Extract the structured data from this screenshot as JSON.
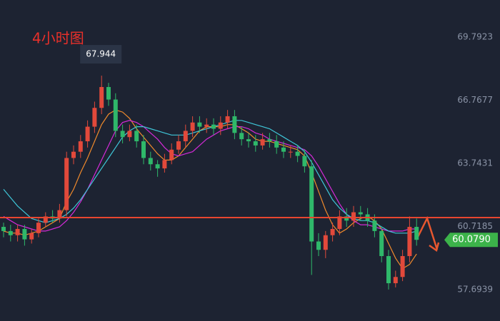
{
  "chart_data": {
    "type": "candlestick",
    "title": "4小时图",
    "up_color": "#e2493b",
    "down_color": "#2fb86a",
    "open": [
      60.7,
      60.5,
      60.3,
      60.6,
      60.1,
      60.4,
      60.9,
      61.2,
      61.1,
      61.5,
      64.0,
      64.3,
      64.8,
      65.5,
      66.4,
      67.4,
      66.8,
      65.3,
      65.0,
      65.3,
      64.8,
      64.0,
      63.7,
      63.5,
      63.9,
      64.4,
      64.8,
      65.3,
      65.7,
      65.5,
      65.6,
      65.4,
      65.7,
      66.0,
      65.2,
      64.9,
      64.8,
      64.6,
      64.9,
      64.8,
      64.5,
      64.3,
      64.3,
      64.1,
      63.6,
      60.0,
      59.6,
      60.3,
      60.6,
      61.2,
      61.0,
      61.4,
      61.3,
      61.0,
      60.5,
      59.3,
      58.0,
      58.3,
      59.3,
      60.7
    ],
    "high": [
      60.9,
      60.8,
      60.8,
      60.8,
      60.6,
      61.1,
      61.4,
      61.5,
      61.8,
      64.3,
      64.6,
      65.1,
      65.8,
      66.7,
      67.944,
      67.6,
      67.1,
      65.6,
      65.6,
      65.6,
      65.1,
      64.3,
      63.9,
      64.2,
      64.7,
      65.1,
      65.6,
      66.0,
      66.0,
      65.9,
      65.9,
      66.0,
      66.3,
      66.3,
      65.5,
      65.2,
      65.1,
      65.2,
      65.2,
      65.1,
      64.8,
      64.6,
      64.6,
      64.4,
      63.9,
      60.4,
      60.5,
      60.9,
      61.5,
      61.6,
      61.7,
      61.7,
      61.6,
      61.3,
      60.7,
      59.6,
      58.6,
      59.6,
      61.2,
      61.1
    ],
    "low": [
      60.2,
      60.0,
      60.0,
      59.8,
      59.9,
      60.2,
      60.7,
      60.9,
      60.9,
      61.2,
      63.7,
      64.0,
      64.5,
      65.2,
      66.1,
      66.5,
      65.0,
      64.7,
      64.8,
      64.5,
      63.7,
      63.4,
      63.1,
      63.3,
      63.7,
      64.2,
      64.5,
      65.0,
      65.2,
      65.2,
      65.1,
      65.1,
      65.4,
      64.9,
      64.6,
      64.5,
      64.3,
      64.4,
      64.5,
      64.2,
      64.0,
      64.0,
      63.8,
      63.3,
      58.4,
      59.3,
      59.2,
      60.0,
      60.3,
      60.7,
      60.7,
      61.0,
      60.7,
      60.2,
      59.0,
      57.7,
      57.8,
      58.1,
      59.0,
      59.8
    ],
    "close": [
      60.5,
      60.3,
      60.6,
      60.1,
      60.4,
      60.9,
      61.2,
      61.1,
      61.5,
      64.0,
      64.3,
      64.8,
      65.5,
      66.4,
      67.4,
      66.8,
      65.3,
      65.0,
      65.3,
      64.8,
      64.0,
      63.7,
      63.5,
      63.9,
      64.4,
      64.8,
      65.3,
      65.7,
      65.5,
      65.6,
      65.4,
      65.7,
      66.0,
      65.2,
      64.9,
      64.8,
      64.6,
      64.9,
      64.8,
      64.5,
      64.3,
      64.3,
      64.1,
      63.6,
      60.0,
      59.6,
      60.3,
      60.6,
      61.2,
      61.0,
      61.4,
      61.3,
      61.0,
      60.5,
      59.3,
      58.0,
      58.3,
      59.3,
      60.7,
      60.079
    ],
    "series": [
      {
        "color": "#f08a2c",
        "values": [
          60.5,
          60.4,
          60.4,
          60.3,
          60.4,
          60.5,
          60.7,
          60.9,
          61.1,
          61.9,
          62.5,
          63.3,
          64.0,
          64.8,
          65.6,
          66.1,
          66.3,
          66.2,
          65.9,
          65.4,
          65.0,
          64.6,
          64.2,
          63.9,
          63.9,
          64.1,
          64.5,
          64.9,
          65.3,
          65.5,
          65.5,
          65.5,
          65.6,
          65.6,
          65.4,
          65.2,
          64.9,
          64.8,
          64.8,
          64.7,
          64.6,
          64.5,
          64.4,
          64.1,
          63.3,
          62.4,
          61.5,
          60.8,
          60.4,
          60.6,
          60.9,
          61.1,
          61.2,
          61.0,
          60.6,
          59.9,
          59.2,
          58.7,
          58.9,
          59.4
        ]
      },
      {
        "color": "#d42ad8",
        "values": [
          61.2,
          61.0,
          60.8,
          60.7,
          60.6,
          60.5,
          60.5,
          60.6,
          60.7,
          61.0,
          61.4,
          61.9,
          62.5,
          63.2,
          63.9,
          64.6,
          65.3,
          65.7,
          65.8,
          65.7,
          65.5,
          65.2,
          64.9,
          64.5,
          64.2,
          64.1,
          64.2,
          64.3,
          64.6,
          64.9,
          65.1,
          65.3,
          65.4,
          65.5,
          65.5,
          65.4,
          65.2,
          65.1,
          64.9,
          64.8,
          64.7,
          64.6,
          64.5,
          64.4,
          64.1,
          63.6,
          63.0,
          62.4,
          61.8,
          61.3,
          61.0,
          60.8,
          60.8,
          60.7,
          60.6,
          60.5,
          60.5,
          60.5,
          60.6,
          60.6
        ]
      },
      {
        "color": "#3fc6d8",
        "values": [
          62.5,
          62.1,
          61.7,
          61.4,
          61.1,
          61.0,
          60.9,
          61.0,
          61.1,
          61.3,
          61.6,
          62.0,
          62.5,
          63.0,
          63.5,
          64.0,
          64.5,
          65.0,
          65.3,
          65.5,
          65.5,
          65.4,
          65.3,
          65.2,
          65.1,
          65.1,
          65.1,
          65.2,
          65.3,
          65.4,
          65.5,
          65.6,
          65.7,
          65.8,
          65.8,
          65.7,
          65.6,
          65.5,
          65.4,
          65.2,
          65.0,
          64.8,
          64.6,
          64.3,
          63.8,
          63.2,
          62.6,
          62.0,
          61.6,
          61.3,
          61.1,
          61.0,
          61.0,
          60.9,
          60.7,
          60.5,
          60.4,
          60.4,
          60.4,
          60.5
        ]
      }
    ],
    "ylim": [
      56.19,
      71.569
    ],
    "yticks": [
      57.6939,
      60.7185,
      63.7431,
      66.7677,
      69.7923
    ],
    "hline": {
      "value": 61.145,
      "color": "#e8462f"
    },
    "high_label": {
      "index": 14,
      "value": 67.944
    },
    "last_price": {
      "value": 60.079,
      "label": "60.0790",
      "color": "#3cb34a"
    }
  }
}
